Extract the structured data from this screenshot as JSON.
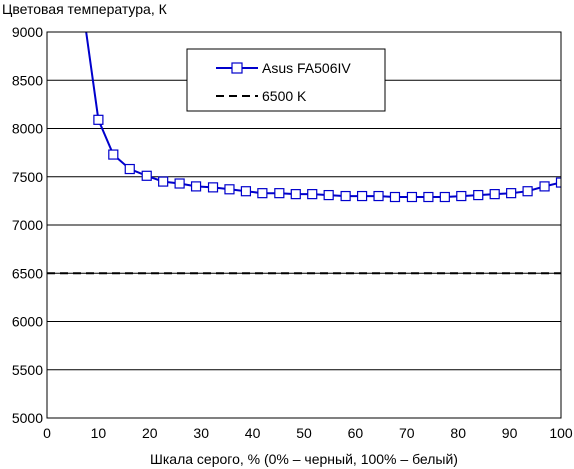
{
  "chart_data": {
    "type": "line",
    "title": "Цветовая температура, К",
    "xlabel": "Шкала серого, % (0% – черный, 100% – белый)",
    "ylabel": "",
    "xlim": [
      0,
      100
    ],
    "ylim": [
      5000,
      9000
    ],
    "xticks": [
      0,
      10,
      20,
      30,
      40,
      50,
      60,
      70,
      80,
      90,
      100
    ],
    "yticks": [
      5000,
      5500,
      6000,
      6500,
      7000,
      7500,
      8000,
      8500,
      9000
    ],
    "grid": "horizontal",
    "legend_position": "top-center",
    "series": [
      {
        "name": "Asus FA506IV",
        "color": "#0000cc",
        "marker": "open-square",
        "x": [
          7.5,
          10,
          12.9,
          16.1,
          19.4,
          22.6,
          25.8,
          29,
          32.3,
          35.5,
          38.7,
          41.9,
          45.2,
          48.4,
          51.6,
          54.8,
          58.1,
          61.3,
          64.5,
          67.7,
          71,
          74.2,
          77.4,
          80.6,
          83.9,
          87.1,
          90.3,
          93.5,
          96.8,
          100
        ],
        "y": [
          9050,
          8090,
          7730,
          7580,
          7510,
          7450,
          7430,
          7400,
          7390,
          7370,
          7350,
          7330,
          7330,
          7320,
          7320,
          7310,
          7300,
          7300,
          7300,
          7290,
          7290,
          7290,
          7290,
          7300,
          7310,
          7320,
          7330,
          7350,
          7400,
          7440
        ]
      },
      {
        "name": "6500 K",
        "color": "#000000",
        "dashed": true,
        "x": [
          0,
          100
        ],
        "y": [
          6500,
          6500
        ]
      }
    ]
  }
}
